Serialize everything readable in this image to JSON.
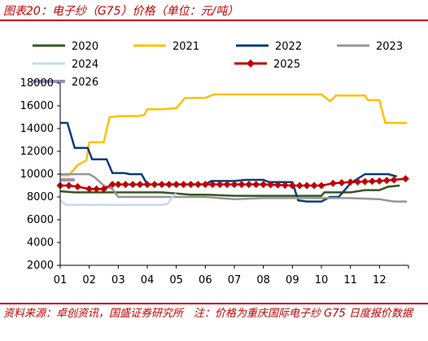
{
  "header": {
    "title": "图表20：电子纱（G75）价格（单位：元/吨）"
  },
  "footer": {
    "source": "资料来源：卓创资讯，国盛证券研究所　注：价格为重庆国际电子纱 G75 日度报价数据"
  },
  "chart_data": {
    "type": "line",
    "title": "",
    "xlabel": "",
    "ylabel": "",
    "ylim": [
      2000,
      18000
    ],
    "yticks": [
      "2000",
      "4000",
      "6000",
      "8000",
      "10000",
      "12000",
      "14000",
      "16000",
      "18000"
    ],
    "categories": [
      "01",
      "02",
      "03",
      "04",
      "05",
      "06",
      "07",
      "08",
      "09",
      "10",
      "11",
      "12"
    ],
    "legend_position": "top",
    "grid": false,
    "series": [
      {
        "name": "2020",
        "color": "#375623",
        "marker": "none",
        "width": 2.5,
        "points": [
          [
            0,
            8500
          ],
          [
            0.5,
            8400
          ],
          [
            1,
            8400
          ],
          [
            2,
            8400
          ],
          [
            3,
            8400
          ],
          [
            3.5,
            8400
          ],
          [
            4,
            8300
          ],
          [
            4.5,
            8200
          ],
          [
            5,
            8200
          ],
          [
            6,
            8100
          ],
          [
            7,
            8100
          ],
          [
            8,
            8100
          ],
          [
            9,
            8100
          ],
          [
            9.1,
            8400
          ],
          [
            10,
            8400
          ],
          [
            10.5,
            8600
          ],
          [
            11,
            8600
          ],
          [
            11.3,
            8900
          ],
          [
            11.7,
            9000
          ]
        ]
      },
      {
        "name": "2021",
        "color": "#ffc000",
        "marker": "none",
        "width": 2.5,
        "points": [
          [
            0,
            9900
          ],
          [
            0.3,
            9900
          ],
          [
            0.6,
            10800
          ],
          [
            0.9,
            11200
          ],
          [
            1.0,
            12800
          ],
          [
            1.3,
            12800
          ],
          [
            1.5,
            12800
          ],
          [
            1.7,
            15000
          ],
          [
            2,
            15100
          ],
          [
            2.7,
            15100
          ],
          [
            2.9,
            15200
          ],
          [
            3,
            15700
          ],
          [
            3.5,
            15700
          ],
          [
            4,
            15800
          ],
          [
            4.3,
            16700
          ],
          [
            5,
            16700
          ],
          [
            5.3,
            17000
          ],
          [
            7,
            17000
          ],
          [
            9,
            17000
          ],
          [
            9.3,
            16400
          ],
          [
            9.5,
            16900
          ],
          [
            10.5,
            16900
          ],
          [
            10.6,
            16500
          ],
          [
            11,
            16500
          ],
          [
            11.2,
            14500
          ],
          [
            11.95,
            14500
          ]
        ]
      },
      {
        "name": "2022",
        "color": "#0e3b7a",
        "marker": "none",
        "width": 2.5,
        "points": [
          [
            0,
            14500
          ],
          [
            0.25,
            14500
          ],
          [
            0.5,
            12300
          ],
          [
            0.95,
            12300
          ],
          [
            1.1,
            11300
          ],
          [
            1.6,
            11300
          ],
          [
            1.8,
            10100
          ],
          [
            2.2,
            10100
          ],
          [
            2.4,
            10000
          ],
          [
            2.8,
            10000
          ],
          [
            3,
            9100
          ],
          [
            4,
            9100
          ],
          [
            5,
            9100
          ],
          [
            5.2,
            9400
          ],
          [
            6,
            9400
          ],
          [
            6.4,
            9500
          ],
          [
            7,
            9500
          ],
          [
            7.2,
            9300
          ],
          [
            8,
            9300
          ],
          [
            8.2,
            7700
          ],
          [
            8.5,
            7600
          ],
          [
            9,
            7600
          ],
          [
            9.3,
            8000
          ],
          [
            9.6,
            8000
          ],
          [
            10,
            9200
          ],
          [
            10.5,
            10000
          ],
          [
            11,
            10000
          ],
          [
            11.3,
            10000
          ],
          [
            11.6,
            9800
          ]
        ]
      },
      {
        "name": "2023",
        "color": "#969696",
        "marker": "none",
        "width": 2.5,
        "points": [
          [
            0,
            10000
          ],
          [
            1,
            10000
          ],
          [
            1.2,
            9700
          ],
          [
            1.5,
            9000
          ],
          [
            1.8,
            8700
          ],
          [
            2,
            8000
          ],
          [
            3,
            8000
          ],
          [
            4,
            8000
          ],
          [
            5,
            8000
          ],
          [
            6,
            7800
          ],
          [
            7,
            7900
          ],
          [
            8,
            7900
          ],
          [
            9,
            7900
          ],
          [
            10,
            7900
          ],
          [
            11,
            7800
          ],
          [
            11.5,
            7600
          ],
          [
            11.95,
            7600
          ]
        ]
      },
      {
        "name": "2024",
        "color": "#c5d9ef",
        "marker": "none",
        "width": 2.5,
        "points": [
          [
            0,
            7700
          ],
          [
            0.2,
            7300
          ],
          [
            1,
            7300
          ],
          [
            2,
            7300
          ],
          [
            3,
            7300
          ],
          [
            3.5,
            7300
          ],
          [
            3.7,
            7400
          ],
          [
            3.9,
            8100
          ],
          [
            4,
            8300
          ]
        ]
      },
      {
        "name": "2025",
        "color": "#c00000",
        "marker": "diamond",
        "width": 2.5,
        "points": [
          [
            0,
            9000
          ],
          [
            0.3,
            9000
          ],
          [
            0.6,
            8900
          ],
          [
            1,
            8700
          ],
          [
            1.5,
            8700
          ],
          [
            1.8,
            9100
          ],
          [
            2,
            9100
          ],
          [
            3,
            9100
          ],
          [
            4,
            9100
          ],
          [
            5,
            9100
          ],
          [
            6,
            9100
          ],
          [
            7,
            9100
          ],
          [
            8,
            9000
          ],
          [
            9,
            9000
          ],
          [
            9.4,
            9200
          ],
          [
            10,
            9300
          ],
          [
            11,
            9400
          ],
          [
            11.5,
            9500
          ],
          [
            11.9,
            9600
          ]
        ]
      },
      {
        "name": "2026",
        "color": "#9e8fbf",
        "marker": "none",
        "width": 4,
        "points": [
          [
            0,
            9500
          ],
          [
            0.5,
            9500
          ]
        ]
      }
    ]
  }
}
